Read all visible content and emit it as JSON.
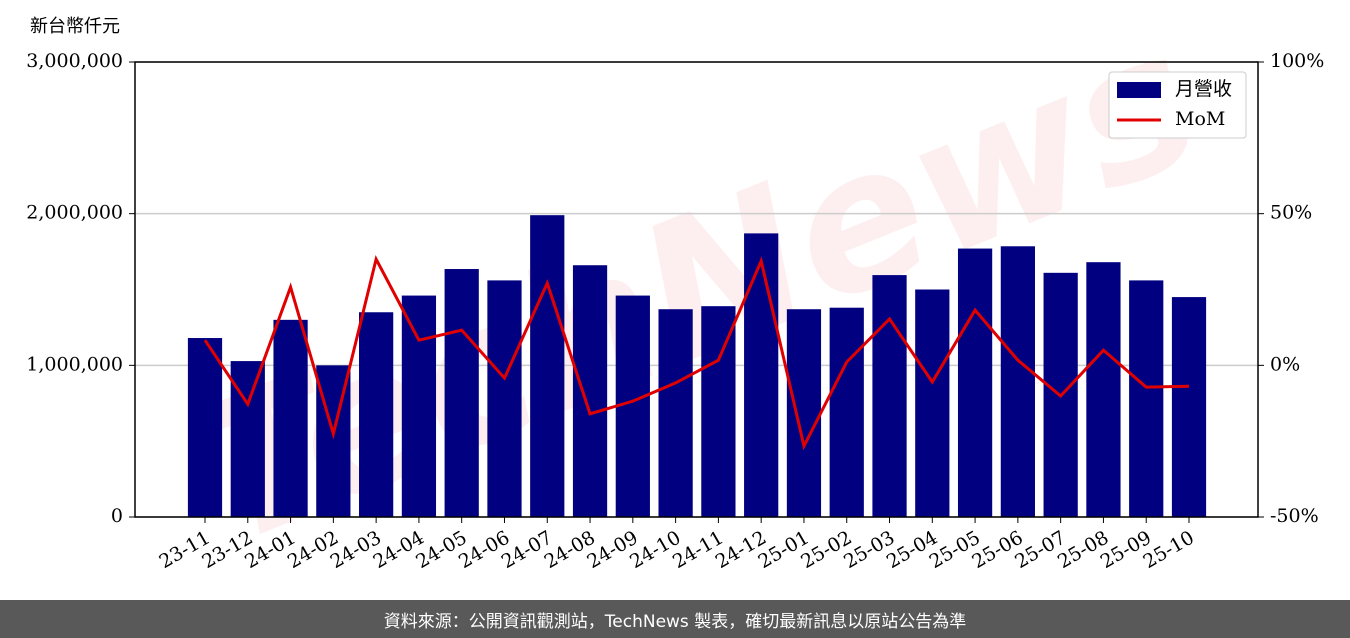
{
  "chart_data": {
    "type": "bar",
    "y_unit": "新台幣仟元",
    "watermark": "TechNews",
    "categories": [
      "23-11",
      "23-12",
      "24-01",
      "24-02",
      "24-03",
      "24-04",
      "24-05",
      "24-06",
      "24-07",
      "24-08",
      "24-09",
      "24-10",
      "24-11",
      "24-12",
      "25-01",
      "25-02",
      "25-03",
      "25-04",
      "25-05",
      "25-06",
      "25-07",
      "25-08",
      "25-09",
      "25-10"
    ],
    "series": [
      {
        "name": "月營收",
        "color": "#000080",
        "type": "bar",
        "values": [
          1180000,
          1028000,
          1300000,
          1000000,
          1350000,
          1460000,
          1635000,
          1560000,
          1990000,
          1660000,
          1460000,
          1370000,
          1390000,
          1870000,
          1370000,
          1380000,
          1595000,
          1500000,
          1770000,
          1785000,
          1610000,
          1680000,
          1560000,
          1450000
        ]
      },
      {
        "name": "MoM",
        "color": "#e00000",
        "type": "line",
        "axis": "y2",
        "values": [
          8.3,
          -12.8,
          25.8,
          -22.6,
          35,
          8.3,
          11.6,
          -4.2,
          27.1,
          -16,
          -11.8,
          -5.8,
          1.7,
          34.4,
          -26.6,
          1.1,
          15.3,
          -5.5,
          18.2,
          1.7,
          -10.1,
          5,
          -7.2,
          -6.9
        ]
      }
    ],
    "ylim": [
      0,
      3000000
    ],
    "yticks": [
      0,
      {
        "value": 1000000,
        "label": "1,000,000"
      },
      {
        "value": 2000000,
        "label": "2,000,000"
      },
      {
        "value": 3000000,
        "label": "3,000,000"
      }
    ],
    "y2lim": [
      -50,
      100
    ],
    "y2ticks": [
      {
        "value": -50,
        "label": "-50%"
      },
      {
        "value": 0,
        "label": "0%"
      },
      {
        "value": 50,
        "label": "50%"
      },
      {
        "value": 100,
        "label": "100%"
      }
    ],
    "grid": true,
    "legend": "upper right"
  },
  "footer": "資料來源：公開資訊觀測站，TechNews 製表，確切最新訊息以原站公告為準"
}
